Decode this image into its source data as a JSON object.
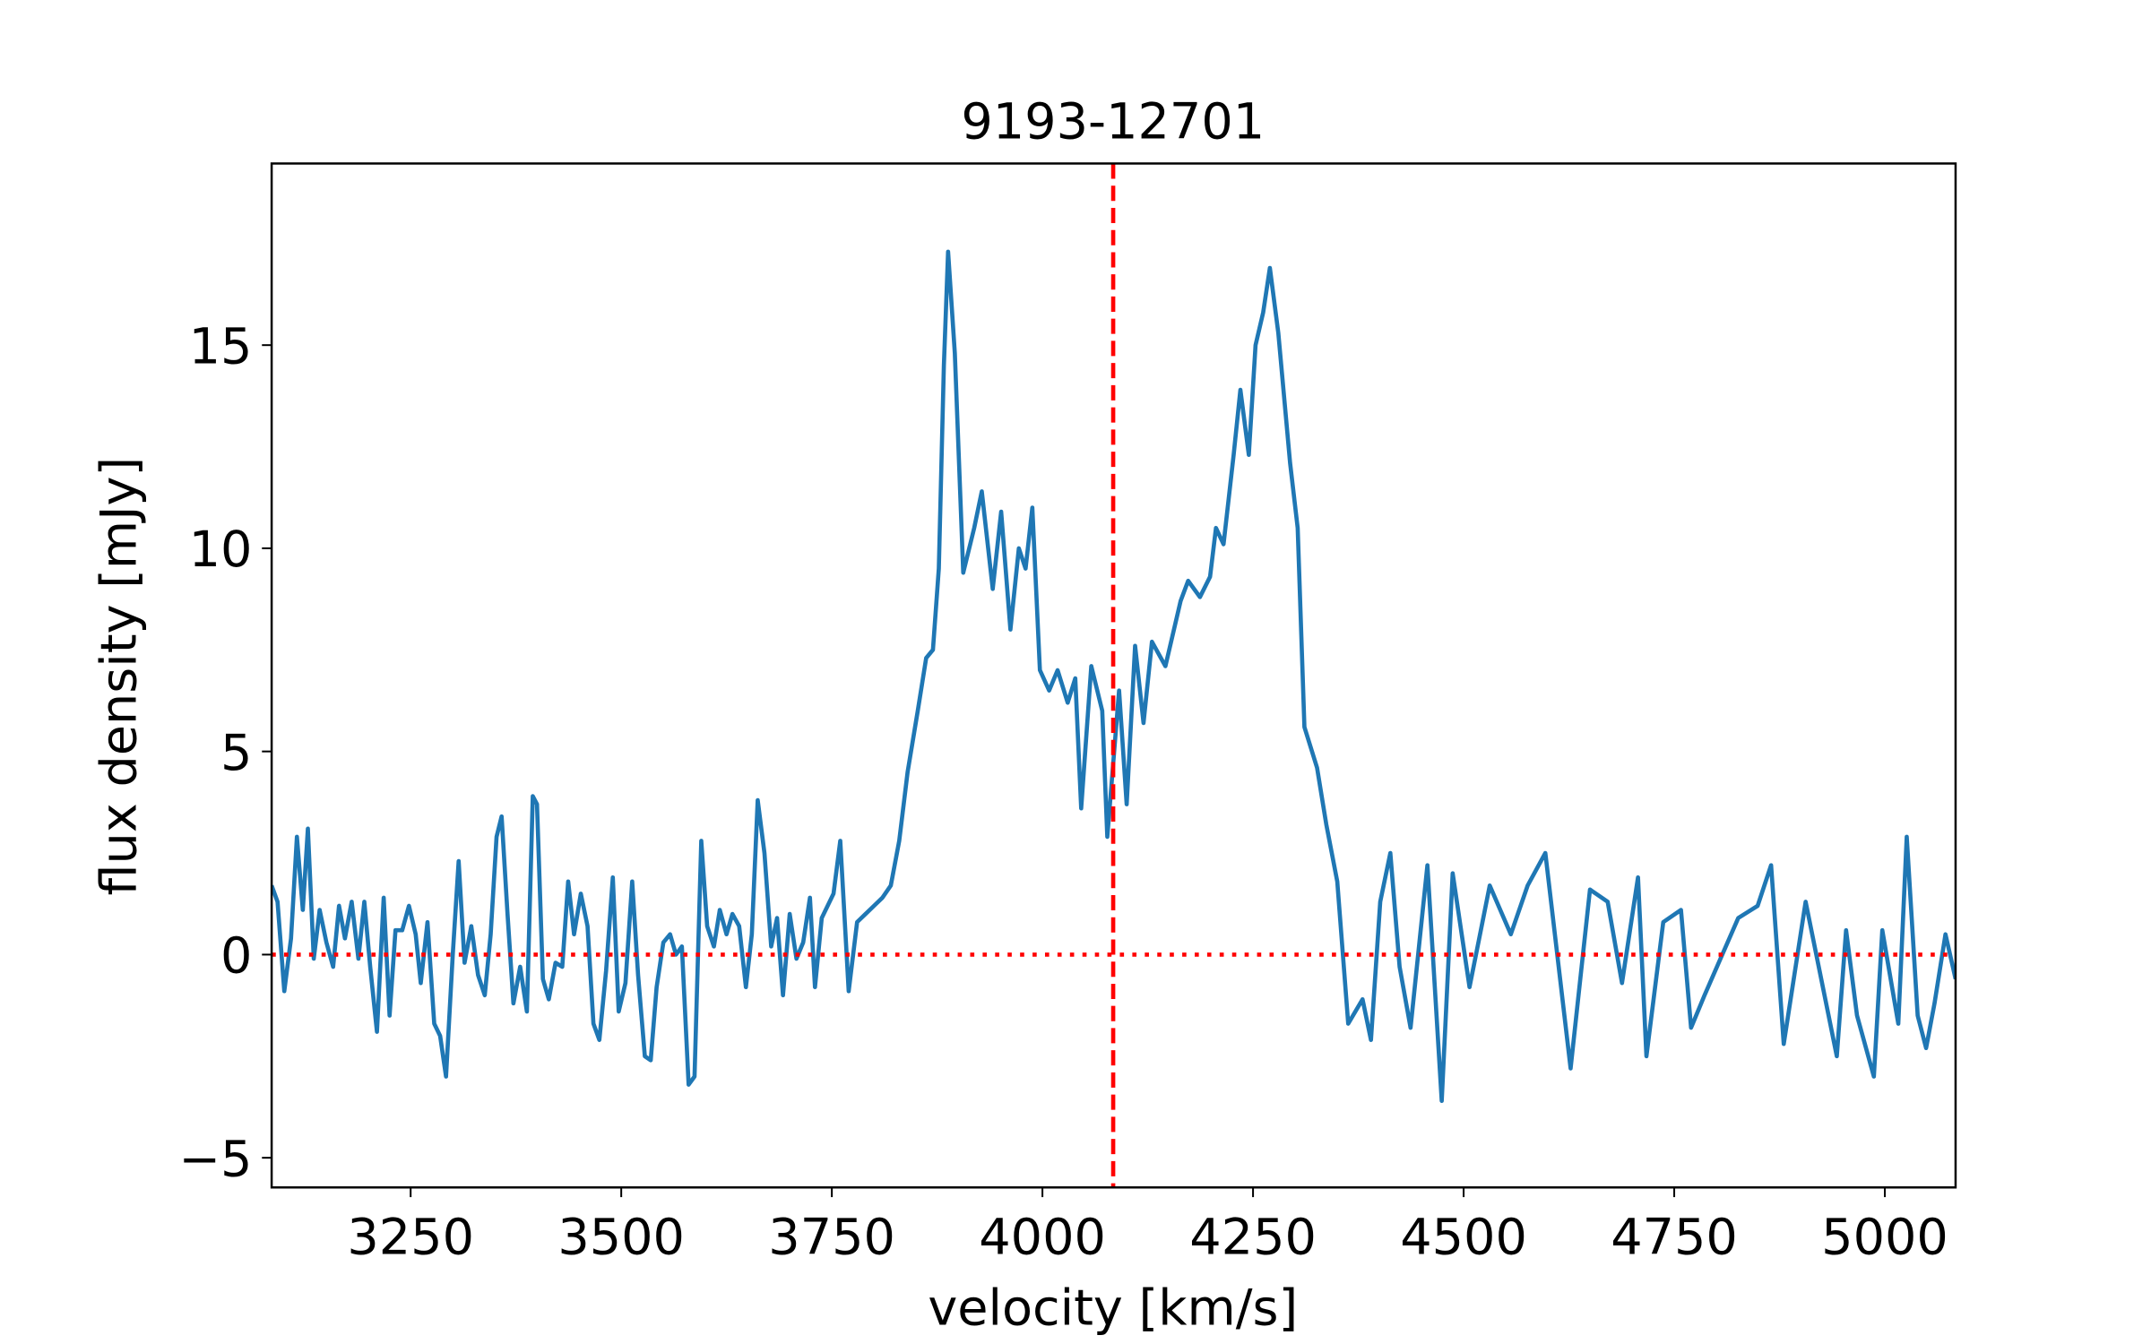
{
  "chart_data": {
    "type": "line",
    "title": "9193-12701",
    "xlabel": "velocity [km/s]",
    "ylabel": "flux density [mJy]",
    "x": [
      3085,
      3092,
      3100,
      3108,
      3115,
      3122,
      3128,
      3135,
      3142,
      3150,
      3158,
      3165,
      3172,
      3180,
      3188,
      3195,
      3202,
      3210,
      3218,
      3225,
      3232,
      3240,
      3248,
      3256,
      3262,
      3270,
      3278,
      3285,
      3292,
      3300,
      3307,
      3314,
      3322,
      3330,
      3338,
      3345,
      3352,
      3358,
      3365,
      3372,
      3380,
      3388,
      3395,
      3400,
      3407,
      3414,
      3422,
      3430,
      3437,
      3444,
      3452,
      3460,
      3467,
      3474,
      3482,
      3490,
      3497,
      3505,
      3513,
      3520,
      3528,
      3535,
      3542,
      3550,
      3558,
      3565,
      3572,
      3580,
      3587,
      3595,
      3602,
      3610,
      3617,
      3625,
      3632,
      3640,
      3648,
      3655,
      3662,
      3670,
      3678,
      3685,
      3692,
      3700,
      3708,
      3716,
      3724,
      3730,
      3738,
      3745,
      3752,
      3760,
      3770,
      3780,
      3790,
      3800,
      3810,
      3820,
      3830,
      3840,
      3852,
      3862,
      3870,
      3877,
      3883,
      3888,
      3896,
      3906,
      3919,
      3928,
      3941,
      3951,
      3962,
      3972,
      3980,
      3988,
      3997,
      4008,
      4018,
      4030,
      4039,
      4046,
      4058,
      4071,
      4077,
      4091,
      4100,
      4110,
      4120,
      4130,
      4146,
      4164,
      4173,
      4187,
      4199,
      4206,
      4215,
      4227,
      4235,
      4245,
      4253,
      4262,
      4270,
      4280,
      4294,
      4303,
      4311,
      4326,
      4337,
      4350,
      4363,
      4380,
      4390,
      4401,
      4413,
      4424,
      4437,
      4457,
      4474,
      4487,
      4507,
      4531,
      4556,
      4576,
      4597,
      4627,
      4650,
      4671,
      4688,
      4707,
      4717,
      4737,
      4758,
      4770,
      4786,
      4826,
      4849,
      4865,
      4880,
      4906,
      4943,
      4954,
      4967,
      4987,
      4997,
      5016,
      5026,
      5039,
      5049,
      5059,
      5072,
      5084
    ],
    "series": [
      {
        "name": "flux",
        "color": "#1f77b4",
        "values": [
          1.7,
          1.3,
          -0.9,
          0.4,
          2.9,
          1.1,
          3.1,
          -0.1,
          1.1,
          0.3,
          -0.3,
          1.2,
          0.4,
          1.3,
          -0.1,
          1.3,
          -0.3,
          -1.9,
          1.4,
          -1.5,
          0.6,
          0.6,
          1.2,
          0.5,
          -0.7,
          0.8,
          -1.7,
          -2.0,
          -3.0,
          0.0,
          2.3,
          -0.2,
          0.7,
          -0.5,
          -1.0,
          0.5,
          2.9,
          3.4,
          1.0,
          -1.2,
          -0.3,
          -1.4,
          3.9,
          3.7,
          -0.6,
          -1.1,
          -0.2,
          -0.3,
          1.8,
          0.5,
          1.5,
          0.7,
          -1.7,
          -2.1,
          -0.4,
          1.9,
          -1.4,
          -0.7,
          1.8,
          -0.5,
          -2.5,
          -2.6,
          -0.8,
          0.3,
          0.5,
          0.0,
          0.2,
          -3.2,
          -3.0,
          2.8,
          0.7,
          0.2,
          1.1,
          0.5,
          1.0,
          0.7,
          -0.8,
          0.5,
          3.8,
          2.5,
          0.2,
          0.9,
          -1.0,
          1.0,
          -0.1,
          0.3,
          1.4,
          -0.8,
          0.9,
          1.2,
          1.5,
          2.8,
          -0.9,
          0.8,
          1.0,
          1.2,
          1.4,
          1.7,
          2.8,
          4.5,
          6.0,
          7.3,
          7.5,
          9.5,
          14.5,
          17.3,
          14.8,
          9.4,
          10.5,
          11.4,
          9.0,
          10.9,
          8.0,
          10.0,
          9.5,
          11.0,
          7.0,
          6.5,
          7.0,
          6.2,
          6.8,
          3.6,
          7.1,
          6.0,
          2.9,
          6.5,
          3.7,
          7.6,
          5.7,
          7.7,
          7.1,
          8.7,
          9.2,
          8.8,
          9.3,
          10.5,
          10.1,
          12.3,
          13.9,
          12.3,
          15.0,
          15.8,
          16.9,
          15.3,
          12.1,
          10.5,
          5.6,
          4.6,
          3.2,
          1.8,
          -1.7,
          -1.1,
          -2.1,
          1.3,
          2.5,
          -0.3,
          -1.8,
          2.2,
          -3.6,
          2.0,
          -0.8,
          1.7,
          0.5,
          1.7,
          2.5,
          -2.8,
          1.6,
          1.3,
          -0.7,
          1.9,
          -2.5,
          0.8,
          1.1,
          -1.8,
          -1.0,
          0.9,
          1.2,
          2.2,
          -2.2,
          1.3,
          -2.5,
          0.6,
          -1.5,
          -3.0,
          0.6,
          -1.7,
          2.9,
          -1.5,
          -2.3,
          -1.2,
          0.5,
          -0.6
        ]
      }
    ],
    "vlines": [
      {
        "value": 4084,
        "color": "#ff0000"
      }
    ],
    "hlines": [
      {
        "value": 0,
        "color": "#ff0000"
      }
    ],
    "xlim": [
      3085,
      5084
    ],
    "ylim": [
      -5.73,
      19.47
    ],
    "xticks": [
      3250,
      3500,
      3750,
      4000,
      4250,
      4500,
      4750,
      5000
    ],
    "yticks": [
      {
        "value": -5,
        "label": "−5"
      },
      0,
      5,
      10,
      15
    ]
  }
}
